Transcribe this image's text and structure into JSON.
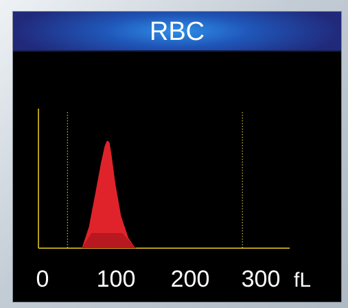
{
  "chart_data": {
    "type": "area",
    "title": "RBC",
    "xunit": "fL",
    "xlim": [
      0,
      300
    ],
    "x_ticks": [
      {
        "label": "0",
        "value": 0
      },
      {
        "label": "100",
        "value": 100
      },
      {
        "label": "200",
        "value": 200
      },
      {
        "label": "300",
        "value": 300
      }
    ],
    "threshold_lines": [
      35,
      280
    ],
    "colors": {
      "curve": "#e0232a",
      "curve_shade": "#b0161d",
      "axis": "#f0d020",
      "threshold": "#d8c040",
      "text": "#ffffff"
    },
    "series": [
      {
        "x": [
          55,
          65,
          75,
          82,
          87,
          90,
          92,
          94,
          97,
          102,
          110,
          120,
          128,
          131
        ],
        "y": [
          0,
          0.2,
          0.55,
          0.8,
          0.95,
          1.0,
          1.0,
          0.98,
          0.85,
          0.6,
          0.3,
          0.1,
          0.02,
          0
        ]
      }
    ]
  }
}
